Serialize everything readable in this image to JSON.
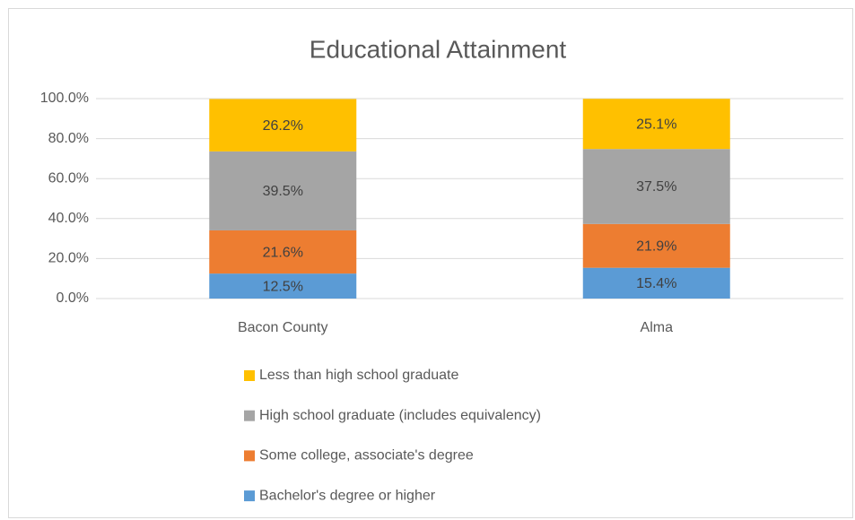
{
  "chart_data": {
    "type": "stacked_bar",
    "title": "Educational Attainment",
    "categories": [
      "Bacon County",
      "Alma"
    ],
    "series": [
      {
        "name": "Bachelor's degree or higher",
        "color": "#5b9bd5",
        "values": [
          12.5,
          15.4
        ],
        "value_labels": [
          "12.5%",
          "15.4%"
        ]
      },
      {
        "name": "Some college, associate's degree",
        "color": "#ed7d31",
        "values": [
          21.6,
          21.9
        ],
        "value_labels": [
          "21.6%",
          "21.9%"
        ]
      },
      {
        "name": "High school graduate (includes equivalency)",
        "color": "#a5a5a5",
        "values": [
          39.5,
          37.5
        ],
        "value_labels": [
          "39.5%",
          "37.5%"
        ]
      },
      {
        "name": "Less than high school graduate",
        "color": "#ffc000",
        "values": [
          26.2,
          25.1
        ],
        "value_labels": [
          "26.2%",
          "25.1%"
        ]
      }
    ],
    "ylim": [
      0,
      100
    ],
    "yticks": [
      {
        "value": 0,
        "label": "0.0%"
      },
      {
        "value": 20,
        "label": "20.0%"
      },
      {
        "value": 40,
        "label": "40.0%"
      },
      {
        "value": 60,
        "label": "60.0%"
      },
      {
        "value": 80,
        "label": "80.0%"
      },
      {
        "value": 100,
        "label": "100.0%"
      }
    ],
    "grid": true,
    "legend": "bottom"
  }
}
